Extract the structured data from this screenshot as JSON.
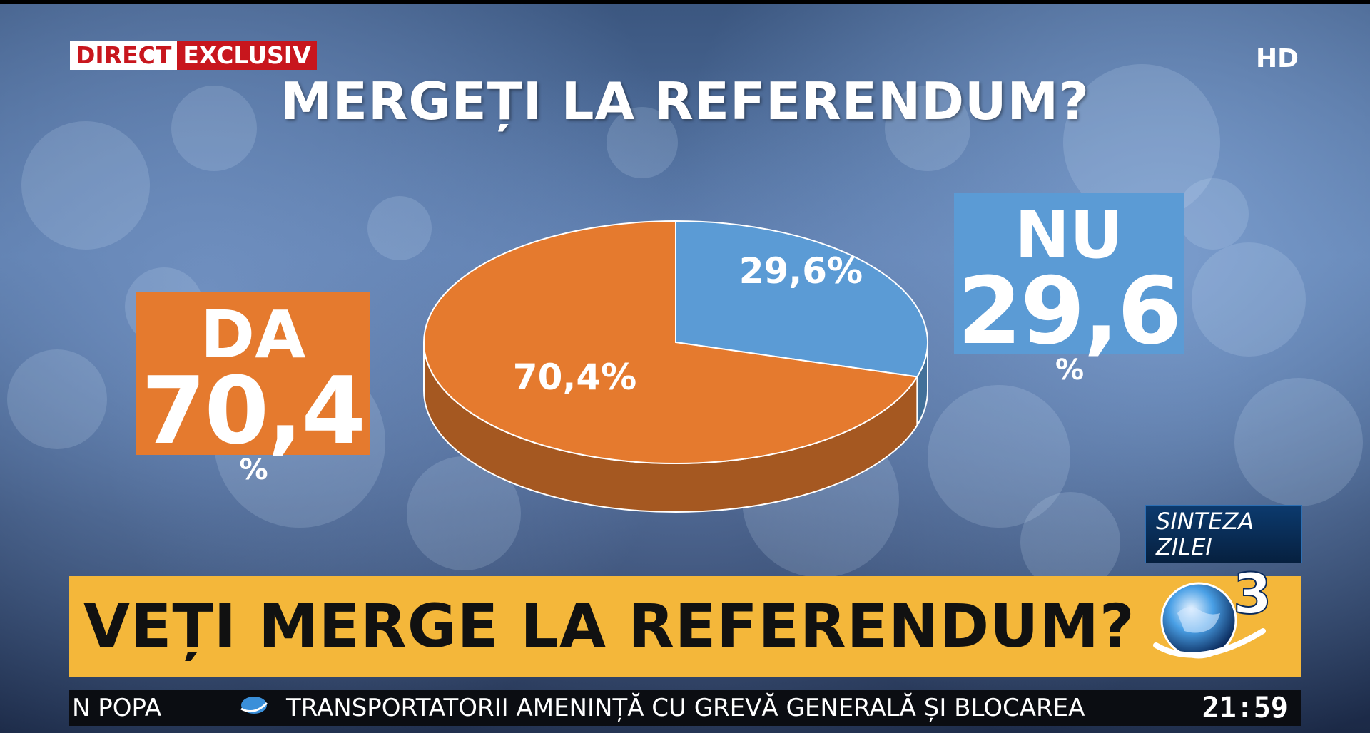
{
  "broadcast": {
    "tag_direct": "DIRECT",
    "tag_exclusiv": "EXCLUSIV",
    "hd_badge": "HD",
    "program": [
      "SINTEZA",
      "ZILEI"
    ],
    "headline": "VEȚI MERGE LA REFERENDUM?",
    "ticker_left": "N POPA",
    "ticker_text": "TRANSPORTATORII AMENINȚĂ CU GREVĂ GENERALĂ ȘI BLOCAREA",
    "clock": "21:59"
  },
  "colors": {
    "da": "#e57a2e",
    "nu": "#5b9bd5",
    "headline_bg": "#f4b73a",
    "direct_red": "#c8161d"
  },
  "chart_data": {
    "type": "pie",
    "title": "MERGEȚI LA REFERENDUM?",
    "slices": [
      {
        "name": "DA",
        "value": 70.4,
        "label": "70,4%",
        "big": "70,4",
        "color": "#e57a2e"
      },
      {
        "name": "NU",
        "value": 29.6,
        "label": "29,6%",
        "big": "29,6",
        "color": "#5b9bd5"
      }
    ],
    "unit": "%"
  }
}
